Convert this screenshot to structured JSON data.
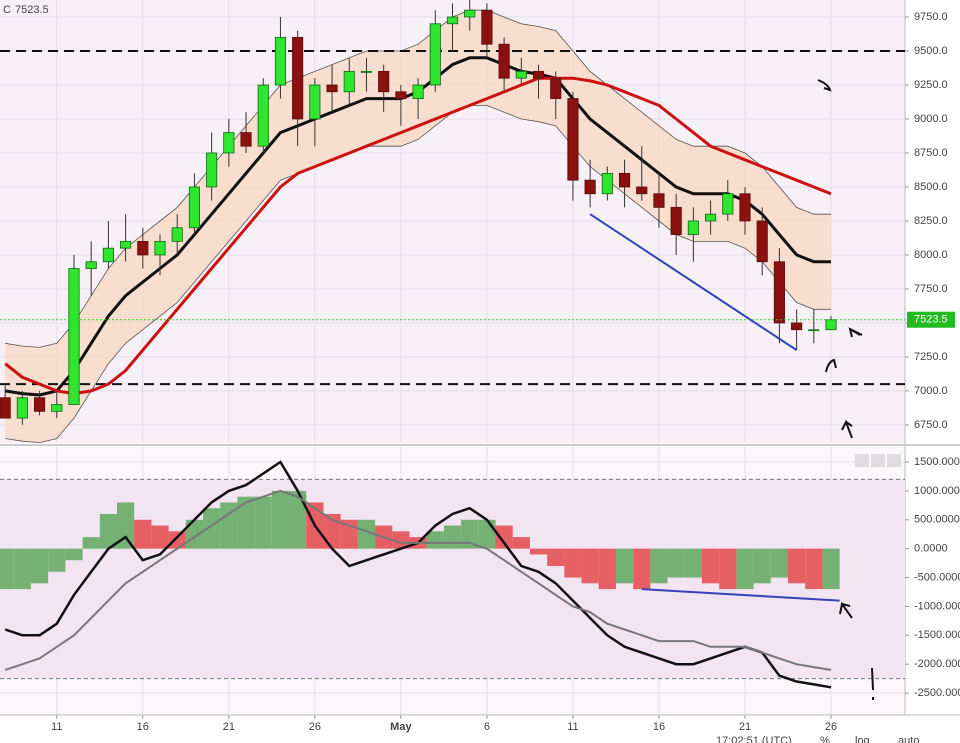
{
  "chart_data": [
    {
      "type": "candlestick",
      "last_label": "C",
      "last": 7523.5,
      "x": [
        8,
        9,
        10,
        11,
        12,
        13,
        14,
        15,
        16,
        17,
        18,
        19,
        20,
        21,
        22,
        23,
        24,
        25,
        26,
        27,
        28,
        29,
        30,
        31,
        32,
        33,
        34,
        35,
        36,
        37,
        38,
        39,
        40,
        41,
        42,
        43,
        44,
        45,
        46,
        47,
        48,
        49,
        50,
        51,
        52,
        53,
        54,
        55,
        56
      ],
      "open": [
        6950,
        6800,
        6950,
        6850,
        6900,
        7900,
        7950,
        8050,
        8100,
        8000,
        8100,
        8200,
        8500,
        8750,
        8900,
        8800,
        9250,
        9600,
        9000,
        9250,
        9200,
        9350,
        9350,
        9200,
        9150,
        9250,
        9700,
        9750,
        9800,
        9550,
        9300,
        9350,
        9300,
        9150,
        8550,
        8450,
        8600,
        8500,
        8450,
        8350,
        8150,
        8250,
        8300,
        8450,
        8250,
        7950,
        7500,
        7450,
        7450
      ],
      "high": [
        7050,
        7000,
        7000,
        7000,
        8000,
        8100,
        8250,
        8300,
        8200,
        8150,
        8300,
        8600,
        8900,
        9000,
        9050,
        9300,
        9750,
        9650,
        9300,
        9400,
        9450,
        9450,
        9400,
        9250,
        9300,
        9800,
        9850,
        9900,
        9850,
        9600,
        9450,
        9400,
        9350,
        9200,
        8700,
        8650,
        8700,
        8800,
        8600,
        8450,
        8350,
        8400,
        8550,
        8500,
        8350,
        8050,
        7600,
        7600,
        7550
      ],
      "low": [
        6800,
        6750,
        6820,
        6800,
        6900,
        7700,
        7900,
        7950,
        7900,
        7850,
        8000,
        8150,
        8400,
        8650,
        8750,
        8750,
        9150,
        8800,
        8800,
        9050,
        9100,
        9200,
        9050,
        8950,
        9000,
        9200,
        9500,
        9650,
        9450,
        9200,
        9250,
        9150,
        9000,
        8400,
        8350,
        8400,
        8350,
        8400,
        8200,
        8000,
        7950,
        8150,
        8250,
        8150,
        7850,
        7350,
        7300,
        7350,
        7450
      ],
      "close": [
        6800,
        6950,
        6850,
        6900,
        7900,
        7950,
        8050,
        8100,
        8000,
        8100,
        8200,
        8500,
        8750,
        8900,
        8800,
        9250,
        9600,
        9000,
        9250,
        9200,
        9350,
        9350,
        9200,
        9150,
        9250,
        9700,
        9750,
        9800,
        9550,
        9300,
        9350,
        9300,
        9150,
        8550,
        8450,
        8600,
        8500,
        8450,
        8350,
        8150,
        8250,
        8300,
        8450,
        8250,
        7950,
        7500,
        7450,
        7450,
        7523.5
      ],
      "up_color": "#2ee62e",
      "down_color": "#8b1111",
      "band": {
        "color": "#f7d9c4",
        "upper": [
          7350,
          7330,
          7320,
          7350,
          7500,
          7700,
          7900,
          8050,
          8150,
          8250,
          8350,
          8500,
          8650,
          8800,
          8950,
          9100,
          9250,
          9300,
          9350,
          9400,
          9450,
          9500,
          9500,
          9500,
          9550,
          9650,
          9750,
          9800,
          9800,
          9750,
          9700,
          9680,
          9650,
          9500,
          9350,
          9250,
          9150,
          9050,
          8950,
          8850,
          8800,
          8800,
          8800,
          8750,
          8650,
          8500,
          8350,
          8300,
          8300
        ],
        "lower": [
          6650,
          6630,
          6620,
          6650,
          6800,
          7000,
          7200,
          7350,
          7450,
          7550,
          7650,
          7800,
          7950,
          8100,
          8250,
          8400,
          8550,
          8600,
          8650,
          8700,
          8750,
          8800,
          8800,
          8800,
          8850,
          8950,
          9050,
          9100,
          9100,
          9050,
          9000,
          8980,
          8950,
          8800,
          8650,
          8550,
          8450,
          8350,
          8250,
          8150,
          8100,
          8100,
          8100,
          8050,
          7950,
          7800,
          7650,
          7600,
          7600
        ]
      },
      "series": [
        {
          "color": "#111111",
          "width": 3,
          "values": [
            7000,
            6980,
            6970,
            7000,
            7150,
            7350,
            7550,
            7700,
            7800,
            7900,
            8000,
            8150,
            8300,
            8450,
            8600,
            8750,
            8900,
            8950,
            9000,
            9050,
            9100,
            9150,
            9150,
            9150,
            9200,
            9300,
            9400,
            9450,
            9450,
            9400,
            9350,
            9330,
            9300,
            9150,
            9000,
            8900,
            8800,
            8700,
            8600,
            8500,
            8450,
            8450,
            8450,
            8400,
            8300,
            8150,
            8000,
            7950,
            7950
          ]
        },
        {
          "color": "#cc1111",
          "width": 3,
          "values": [
            7200,
            7100,
            7050,
            7000,
            6980,
            7000,
            7050,
            7150,
            7300,
            7450,
            7600,
            7750,
            7900,
            8050,
            8200,
            8350,
            8500,
            8600,
            8650,
            8700,
            8750,
            8800,
            8850,
            8900,
            8950,
            9000,
            9050,
            9100,
            9150,
            9200,
            9250,
            9300,
            9300,
            9300,
            9280,
            9250,
            9200,
            9150,
            9100,
            9000,
            8900,
            8800,
            8750,
            8700,
            8650,
            8600,
            8550,
            8500,
            8450
          ]
        }
      ],
      "levels": [
        9500,
        7050
      ],
      "trendline": {
        "color": "#3344bb",
        "x": [
          42,
          54
        ],
        "y": [
          8300,
          7300
        ]
      },
      "xlim": [
        7.7,
        60.3
      ],
      "ylim": [
        6617,
        9875
      ],
      "yticks": [
        {
          "value": 6750,
          "label": "6750.0"
        },
        {
          "value": 7000,
          "label": "7000.0"
        },
        {
          "value": 7250,
          "label": "7250.0"
        },
        {
          "value": 7500,
          "label": "7500.0"
        },
        {
          "value": 7750,
          "label": "7750.0"
        },
        {
          "value": 8000,
          "label": "8000.0"
        },
        {
          "value": 8250,
          "label": "8250.0"
        },
        {
          "value": 8500,
          "label": "8500.0"
        },
        {
          "value": 8750,
          "label": "8750.0"
        },
        {
          "value": 9000,
          "label": "9000.0"
        },
        {
          "value": 9250,
          "label": "9250.0"
        },
        {
          "value": 9500,
          "label": "9500.0"
        },
        {
          "value": 9750,
          "label": "9750.0"
        }
      ]
    },
    {
      "type": "line",
      "x": [
        8,
        9,
        10,
        11,
        12,
        13,
        14,
        15,
        16,
        17,
        18,
        19,
        20,
        21,
        22,
        23,
        24,
        25,
        26,
        27,
        28,
        29,
        30,
        31,
        32,
        33,
        34,
        35,
        36,
        37,
        38,
        39,
        40,
        41,
        42,
        43,
        44,
        45,
        46,
        47,
        48,
        49,
        50,
        51,
        52,
        53,
        54,
        55,
        56
      ],
      "histogram": {
        "up_color": "#5fa85f",
        "down_color": "#e4484c",
        "values": [
          -700,
          -700,
          -600,
          -400,
          -200,
          200,
          600,
          800,
          500,
          400,
          300,
          500,
          700,
          800,
          900,
          900,
          1000,
          1000,
          800,
          600,
          500,
          500,
          400,
          300,
          200,
          300,
          400,
          500,
          500,
          400,
          200,
          -100,
          -300,
          -500,
          -600,
          -700,
          -600,
          -700,
          -600,
          -500,
          -500,
          -600,
          -700,
          -700,
          -600,
          -500,
          -600,
          -700,
          -700
        ]
      },
      "series": [
        {
          "color": "#111111",
          "width": 2.5,
          "values": [
            -1400,
            -1500,
            -1500,
            -1300,
            -800,
            -400,
            0,
            200,
            -200,
            -100,
            200,
            500,
            800,
            1000,
            1100,
            1300,
            1500,
            1000,
            400,
            0,
            -300,
            -200,
            -100,
            0,
            100,
            400,
            600,
            700,
            500,
            100,
            -300,
            -400,
            -600,
            -900,
            -1200,
            -1500,
            -1700,
            -1800,
            -1900,
            -2000,
            -2000,
            -1900,
            -1800,
            -1700,
            -1800,
            -2200,
            -2300,
            -2350,
            -2400
          ]
        },
        {
          "color": "#777777",
          "width": 2,
          "values": [
            -2100,
            -2000,
            -1900,
            -1700,
            -1500,
            -1200,
            -900,
            -600,
            -400,
            -200,
            0,
            200,
            400,
            600,
            800,
            900,
            1000,
            900,
            700,
            500,
            400,
            300,
            200,
            100,
            100,
            100,
            100,
            100,
            0,
            -200,
            -400,
            -600,
            -800,
            -1000,
            -1100,
            -1300,
            -1400,
            -1500,
            -1600,
            -1600,
            -1600,
            -1700,
            -1700,
            -1700,
            -1800,
            -1900,
            -2000,
            -2050,
            -2100
          ]
        }
      ],
      "levels": [
        1200,
        -2250
      ],
      "trendline": {
        "color": "#3344bb",
        "x": [
          45,
          56.5
        ],
        "y": [
          -700,
          -900
        ]
      },
      "xlim": [
        7.7,
        60.3
      ],
      "ylim": [
        -2880,
        1760
      ],
      "xticks": [
        {
          "value": 11,
          "label": "11"
        },
        {
          "value": 16,
          "label": "16"
        },
        {
          "value": 21,
          "label": "21"
        },
        {
          "value": 26,
          "label": "26"
        },
        {
          "value": 31,
          "label": "May"
        },
        {
          "value": 36,
          "label": "6"
        },
        {
          "value": 41,
          "label": "11"
        },
        {
          "value": 46,
          "label": "16"
        },
        {
          "value": 51,
          "label": "21"
        },
        {
          "value": 56,
          "label": "26"
        }
      ],
      "yticks": [
        {
          "value": 1500,
          "label": "1500.0000"
        },
        {
          "value": 1000,
          "label": "1000.0000"
        },
        {
          "value": 500,
          "label": "500.0000"
        },
        {
          "value": 0,
          "label": "0.0000"
        },
        {
          "value": -500,
          "label": "-500.0000"
        },
        {
          "value": -1000,
          "label": "-1000.0000"
        },
        {
          "value": -1500,
          "label": "-1500.0000"
        },
        {
          "value": -2000,
          "label": "-2000.0000"
        },
        {
          "value": -2500,
          "label": "-2500.0000"
        }
      ]
    }
  ],
  "toolbar": {
    "time": "17:02:51 (UTC)",
    "percent": "%",
    "log": "log",
    "auto": "auto"
  }
}
